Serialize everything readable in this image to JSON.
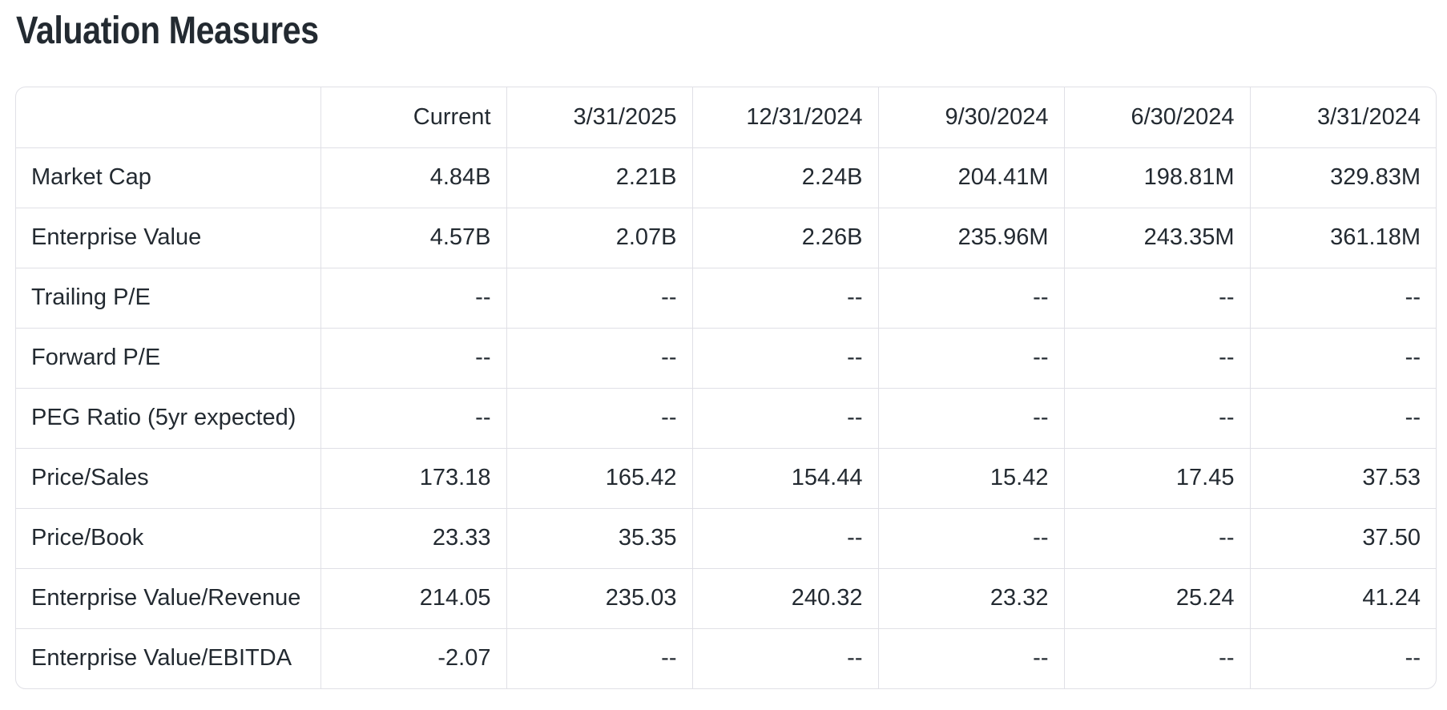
{
  "page": {
    "title": "Valuation Measures"
  },
  "colors": {
    "text": "#232a31",
    "border": "#e0e0e6",
    "background": "#ffffff"
  },
  "table": {
    "columns": [
      "",
      "Current",
      "3/31/2025",
      "12/31/2024",
      "9/30/2024",
      "6/30/2024",
      "3/31/2024"
    ],
    "rows": [
      {
        "label": "Market Cap",
        "values": [
          "4.84B",
          "2.21B",
          "2.24B",
          "204.41M",
          "198.81M",
          "329.83M"
        ]
      },
      {
        "label": "Enterprise Value",
        "values": [
          "4.57B",
          "2.07B",
          "2.26B",
          "235.96M",
          "243.35M",
          "361.18M"
        ]
      },
      {
        "label": "Trailing P/E",
        "values": [
          "--",
          "--",
          "--",
          "--",
          "--",
          "--"
        ]
      },
      {
        "label": "Forward P/E",
        "values": [
          "--",
          "--",
          "--",
          "--",
          "--",
          "--"
        ]
      },
      {
        "label": "PEG Ratio (5yr expected)",
        "values": [
          "--",
          "--",
          "--",
          "--",
          "--",
          "--"
        ]
      },
      {
        "label": "Price/Sales",
        "values": [
          "173.18",
          "165.42",
          "154.44",
          "15.42",
          "17.45",
          "37.53"
        ]
      },
      {
        "label": "Price/Book",
        "values": [
          "23.33",
          "35.35",
          "--",
          "--",
          "--",
          "37.50"
        ]
      },
      {
        "label": "Enterprise Value/Revenue",
        "values": [
          "214.05",
          "235.03",
          "240.32",
          "23.32",
          "25.24",
          "41.24"
        ]
      },
      {
        "label": "Enterprise Value/EBITDA",
        "values": [
          "-2.07",
          "--",
          "--",
          "--",
          "--",
          "--"
        ]
      }
    ]
  }
}
